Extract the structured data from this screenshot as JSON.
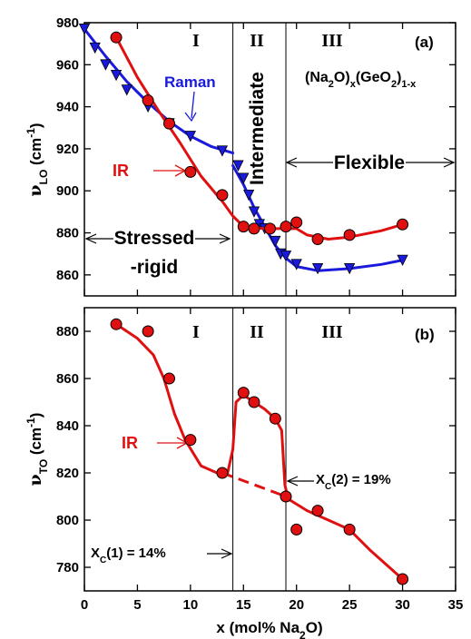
{
  "chart_data": [
    {
      "type": "line",
      "panel_label": "(a)",
      "formula": {
        "a": "(Na",
        "a_sub": "2",
        "b": "O)",
        "b_sub": "x",
        "c": "(GeO",
        "c_sub": "2",
        "d": ")",
        "d_sub": "1-x"
      },
      "ylabel": {
        "main": "ν",
        "sub": "LO",
        "unit": " (cm",
        "sup": "-1",
        "close": ")"
      },
      "xlim": [
        0,
        35
      ],
      "ylim": [
        850,
        980
      ],
      "yticks": [
        860,
        880,
        900,
        920,
        940,
        960,
        980
      ],
      "boundaries": [
        14,
        19
      ],
      "regions": [
        "I",
        "II",
        "III"
      ],
      "annotations": {
        "raman": "Raman",
        "ir": "IR",
        "intermediate": "Intermediate",
        "flexible": "Flexible",
        "stressed1": "Stressed",
        "stressed2": "-rigid"
      },
      "series": [
        {
          "name": "Raman",
          "color": "#1a1adc",
          "marker": "triangle-down",
          "points": [
            [
              0,
              977
            ],
            [
              1,
              968
            ],
            [
              2,
              960
            ],
            [
              3,
              955
            ],
            [
              4,
              948
            ],
            [
              6,
              940
            ],
            [
              8,
              932
            ],
            [
              10,
              926
            ],
            [
              13,
              919
            ],
            [
              14.5,
              912
            ],
            [
              15,
              906
            ],
            [
              15.5,
              898
            ],
            [
              16,
              890
            ],
            [
              16.5,
              884
            ],
            [
              17,
              882
            ],
            [
              18,
              876
            ],
            [
              18.5,
              870
            ],
            [
              19,
              869
            ],
            [
              20,
              865
            ],
            [
              22,
              863
            ],
            [
              25,
              863
            ],
            [
              30,
              867
            ]
          ],
          "fit": [
            [
              [
                0,
                977
              ],
              [
                2,
                964
              ],
              [
                4,
                952
              ],
              [
                6,
                942
              ],
              [
                8,
                933
              ],
              [
                10,
                926
              ],
              [
                12,
                921
              ],
              [
                14,
                918
              ]
            ],
            [
              [
                14,
                912
              ],
              [
                15,
                903
              ],
              [
                16,
                892
              ],
              [
                17,
                883
              ],
              [
                18,
                874
              ],
              [
                19,
                868
              ],
              [
                20,
                864
              ],
              [
                22,
                862
              ],
              [
                25,
                863
              ],
              [
                28,
                865
              ],
              [
                30,
                867
              ]
            ]
          ]
        },
        {
          "name": "IR",
          "color": "#e01010",
          "marker": "circle",
          "points": [
            [
              3,
              973
            ],
            [
              6,
              943
            ],
            [
              8,
              932
            ],
            [
              10,
              909
            ],
            [
              13,
              898
            ],
            [
              15,
              883
            ],
            [
              16,
              882
            ],
            [
              17.5,
              882
            ],
            [
              19,
              883
            ],
            [
              20,
              885
            ],
            [
              22,
              877
            ],
            [
              25,
              879
            ],
            [
              30,
              884
            ]
          ],
          "fit": [
            [
              [
                3,
                973
              ],
              [
                5,
                954
              ],
              [
                7,
                938
              ],
              [
                9,
                923
              ],
              [
                11,
                907
              ],
              [
                13,
                895
              ],
              [
                14,
                888
              ],
              [
                15,
                883
              ],
              [
                17,
                882
              ],
              [
                19,
                882
              ],
              [
                20,
                882
              ],
              [
                21,
                879
              ],
              [
                23,
                877
              ],
              [
                25,
                878
              ],
              [
                28,
                881
              ],
              [
                30,
                884
              ]
            ]
          ]
        }
      ]
    },
    {
      "type": "line",
      "panel_label": "(b)",
      "ylabel": {
        "main": "ν",
        "sub": "TO",
        "unit": " (cm",
        "sup": "-1",
        "close": ")"
      },
      "xlabel": {
        "main": "x (mol% Na",
        "sub": "2",
        "close": "O)"
      },
      "xlim": [
        0,
        35
      ],
      "xticks": [
        0,
        5,
        10,
        15,
        20,
        25,
        30,
        35
      ],
      "ylim": [
        770,
        890
      ],
      "yticks": [
        780,
        800,
        820,
        840,
        860,
        880
      ],
      "boundaries": [
        14,
        19
      ],
      "regions": [
        "I",
        "II",
        "III"
      ],
      "annotations": {
        "ir": "IR",
        "xc1_main": "X",
        "xc1_sub": "C",
        "xc1_rest": "(1) = 14%",
        "xc2_main": "X",
        "xc2_sub": "C",
        "xc2_rest": "(2) = 19%"
      },
      "series": [
        {
          "name": "IR",
          "color": "#e01010",
          "marker": "circle",
          "points": [
            [
              3,
              883
            ],
            [
              6,
              880
            ],
            [
              8,
              860
            ],
            [
              10,
              834
            ],
            [
              13,
              820
            ],
            [
              15,
              854
            ],
            [
              16,
              850
            ],
            [
              18,
              843
            ],
            [
              19,
              810
            ],
            [
              20,
              796
            ],
            [
              22,
              804
            ],
            [
              25,
              796
            ],
            [
              30,
              775
            ]
          ],
          "fit": [
            [
              [
                3,
                883
              ],
              [
                5,
                877
              ],
              [
                6.5,
                870
              ],
              [
                7.5,
                860
              ],
              [
                8.5,
                845
              ],
              [
                9.5,
                834
              ],
              [
                11,
                823
              ],
              [
                12.5,
                820
              ],
              [
                13.5,
                820
              ],
              [
                14,
                830
              ],
              [
                14.3,
                850
              ],
              [
                15,
                853
              ],
              [
                16,
                850
              ],
              [
                17,
                847
              ],
              [
                18,
                843
              ],
              [
                18.6,
                838
              ],
              [
                18.9,
                815
              ],
              [
                19.2,
                809
              ],
              [
                21,
                804
              ],
              [
                23,
                800
              ],
              [
                25,
                796
              ],
              [
                27,
                787
              ],
              [
                29,
                779
              ],
              [
                30,
                775
              ]
            ]
          ],
          "dashed": [
            [
              13,
              820
            ],
            [
              19,
              810
            ]
          ]
        }
      ]
    }
  ]
}
